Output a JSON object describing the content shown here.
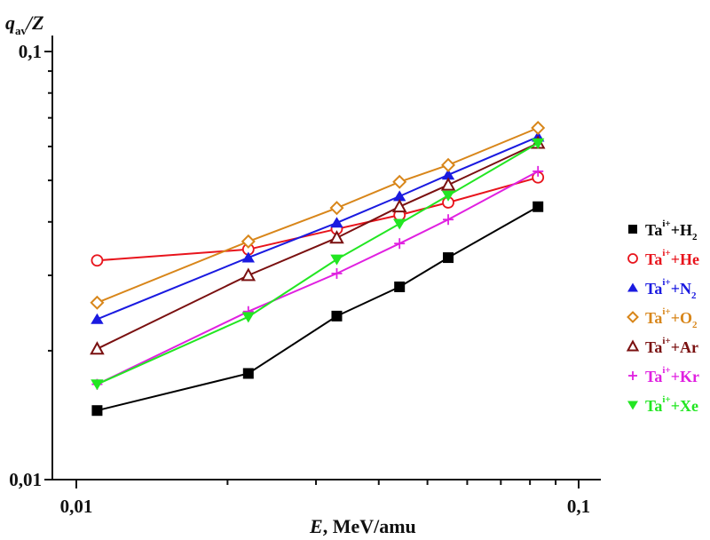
{
  "chart_data": {
    "type": "line",
    "title": "",
    "xlabel": {
      "italic": "E",
      "rest": ", MeV/amu"
    },
    "ylabel": {
      "italic": "q",
      "sub": "av",
      "rest": "/Z"
    },
    "xscale": "log",
    "yscale": "log",
    "xlim": [
      0.0087,
      0.114
    ],
    "ylim": [
      0.01,
      0.11
    ],
    "x_ticks": [
      {
        "value": 0.01,
        "label": "0,01"
      },
      {
        "value": 0.1,
        "label": "0,1"
      }
    ],
    "x_minor_ticks": [
      0.02,
      0.03,
      0.04,
      0.05,
      0.06,
      0.07,
      0.08,
      0.09
    ],
    "y_ticks": [
      {
        "value": 0.01,
        "label": "0,01"
      },
      {
        "value": 0.1,
        "label": "0,1"
      }
    ],
    "y_minor_ticks": [
      0.02,
      0.03,
      0.04,
      0.05,
      0.06,
      0.07,
      0.08,
      0.09
    ],
    "grid": false,
    "legend_position": "right",
    "x": [
      0.011,
      0.022,
      0.033,
      0.044,
      0.055,
      0.083
    ],
    "series": [
      {
        "name": "Ta^{i+}+H_2",
        "base": "Ta",
        "sup": "i+",
        "plus": "+H",
        "sub": "2",
        "color": "#000000",
        "marker": "square-filled",
        "values": [
          0.0145,
          0.0177,
          0.0241,
          0.0282,
          0.033,
          0.0434
        ]
      },
      {
        "name": "Ta^{i+}+He",
        "base": "Ta",
        "sup": "i+",
        "plus": "+He",
        "sub": "",
        "color": "#e8141c",
        "marker": "circle-open",
        "values": [
          0.0325,
          0.0345,
          0.0385,
          0.0415,
          0.0444,
          0.0508
        ]
      },
      {
        "name": "Ta^{i+}+N_2",
        "base": "Ta",
        "sup": "i+",
        "plus": "+N",
        "sub": "2",
        "color": "#1a1ae0",
        "marker": "triangle-up-filled",
        "values": [
          0.0237,
          0.033,
          0.0398,
          0.0459,
          0.0515,
          0.0632
        ]
      },
      {
        "name": "Ta^{i+}+O_2",
        "base": "Ta",
        "sup": "i+",
        "plus": "+O",
        "sub": "2",
        "color": "#d8861a",
        "marker": "diamond-open",
        "values": [
          0.0259,
          0.036,
          0.0431,
          0.0496,
          0.0543,
          0.0663
        ]
      },
      {
        "name": "Ta^{i+}+Ar",
        "base": "Ta",
        "sup": "i+",
        "plus": "+Ar",
        "sub": "",
        "color": "#7a1010",
        "marker": "triangle-up-open",
        "values": [
          0.0202,
          0.03,
          0.0367,
          0.0434,
          0.0488,
          0.0611
        ]
      },
      {
        "name": "Ta^{i+}+Kr",
        "base": "Ta",
        "sup": "i+",
        "plus": "+Kr",
        "sub": "",
        "color": "#e020e0",
        "marker": "plus",
        "values": [
          0.0167,
          0.0247,
          0.0303,
          0.0356,
          0.0405,
          0.0525
        ]
      },
      {
        "name": "Ta^{i+}+Xe",
        "base": "Ta",
        "sup": "i+",
        "plus": "+Xe",
        "sub": "",
        "color": "#22e622",
        "marker": "triangle-down-filled",
        "values": [
          0.0167,
          0.024,
          0.0327,
          0.0396,
          0.0461,
          0.0611
        ]
      }
    ]
  }
}
